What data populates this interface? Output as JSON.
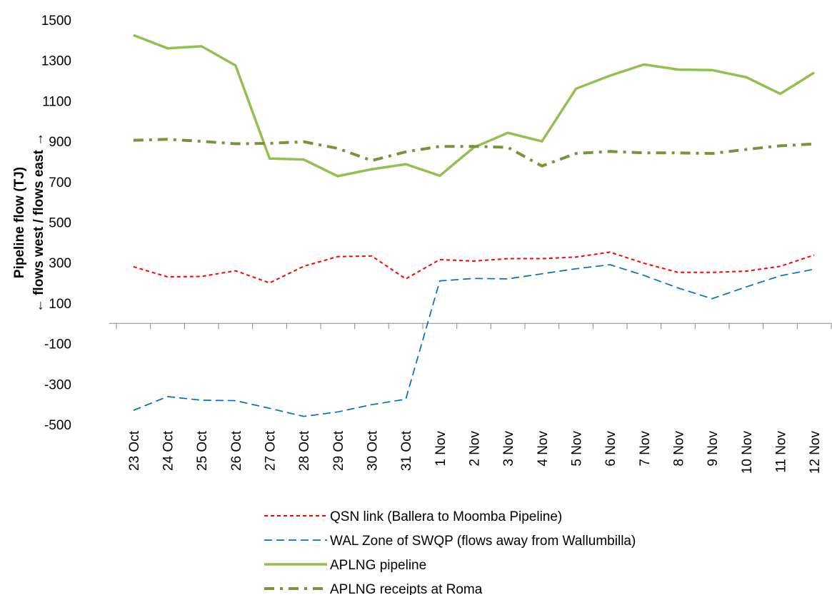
{
  "chart_data": {
    "type": "line",
    "y_label": [
      "Pipeline flow (TJ)",
      "← flows west / flows east →"
    ],
    "categories": [
      "23 Oct",
      "24 Oct",
      "25 Oct",
      "26 Oct",
      "27 Oct",
      "28 Oct",
      "29 Oct",
      "30 Oct",
      "31 Oct",
      "1 Nov",
      "2 Nov",
      "3 Nov",
      "4 Nov",
      "5 Nov",
      "6 Nov",
      "7 Nov",
      "8 Nov",
      "9 Nov",
      "10 Nov",
      "11 Nov",
      "12 Nov"
    ],
    "ylim": [
      -500,
      1500
    ],
    "yticks": [
      -500,
      -300,
      -100,
      100,
      300,
      500,
      700,
      900,
      1100,
      1300,
      1500
    ],
    "grid": false,
    "legend": "bottom",
    "series": [
      {
        "name": "QSN link (Ballera to Moomba Pipeline)",
        "color": "#ff0000",
        "style": "dashed",
        "values": [
          280,
          230,
          232,
          260,
          200,
          282,
          330,
          333,
          220,
          315,
          308,
          320,
          320,
          328,
          352,
          297,
          252,
          252,
          258,
          282,
          338
        ]
      },
      {
        "name": "WAL Zone of SWQP (flows away from Wallumbilla)",
        "color": "#0070c0",
        "style": "long-dashed",
        "values": [
          -430,
          -362,
          -380,
          -382,
          -420,
          -460,
          -438,
          -402,
          -375,
          210,
          222,
          220,
          245,
          270,
          290,
          237,
          175,
          122,
          180,
          235,
          268
        ]
      },
      {
        "name": "APLNG pipeline",
        "color": "#92c050",
        "style": "solid",
        "values": [
          1425,
          1360,
          1370,
          1275,
          815,
          810,
          728,
          762,
          787,
          730,
          870,
          942,
          900,
          1160,
          1225,
          1280,
          1255,
          1252,
          1217,
          1135,
          1240
        ]
      },
      {
        "name": "APLNG receipts at Roma",
        "color": "#77933c",
        "style": "dash-dot",
        "values": [
          905,
          910,
          900,
          888,
          890,
          898,
          865,
          805,
          848,
          875,
          875,
          870,
          778,
          840,
          850,
          843,
          843,
          840,
          860,
          878,
          887
        ]
      }
    ]
  }
}
